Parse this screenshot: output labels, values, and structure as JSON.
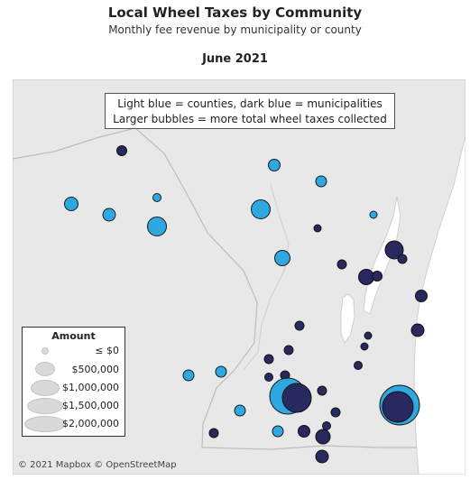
{
  "header": {
    "title": "Local Wheel Taxes by Community",
    "subtitle": "Monthly fee revenue by municipality or county",
    "date": "June 2021"
  },
  "note": {
    "line1": "Light blue = counties, dark blue = municipalities",
    "line2": "Larger bubbles = more total wheel taxes collected"
  },
  "legend": {
    "title": "Amount",
    "items": [
      "≤ $0",
      "$500,000",
      "$1,000,000",
      "$1,500,000",
      "$2,000,000"
    ]
  },
  "colors": {
    "county": "#2ea8e0",
    "municipality": "#27295f",
    "land": "#e6e6e6",
    "water": "#ffffff"
  },
  "attribution": "© 2021 Mapbox © OpenStreetMap"
}
